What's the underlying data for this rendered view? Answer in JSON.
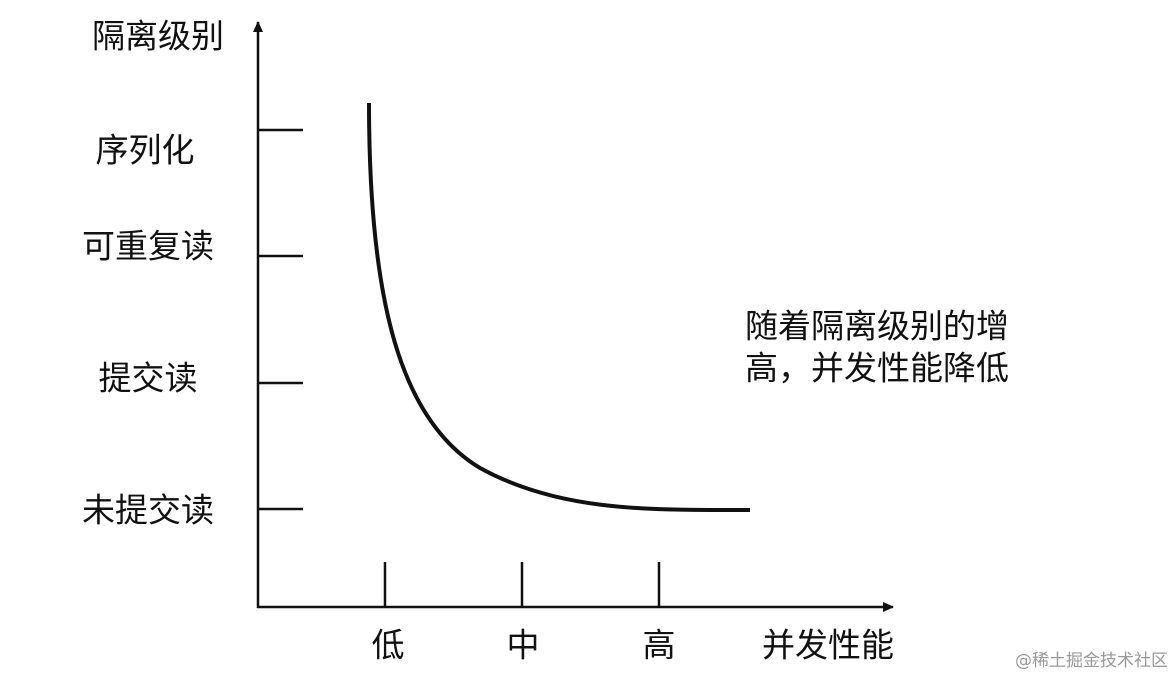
{
  "y_axis": {
    "title": "隔离级别",
    "labels": [
      "序列化",
      "可重复读",
      "提交读",
      "未提交读"
    ]
  },
  "x_axis": {
    "title": "并发性能",
    "labels": [
      "低",
      "中",
      "高"
    ]
  },
  "annotation": {
    "lines": [
      "随着隔离级别的增",
      "高，并发性能降低"
    ]
  },
  "watermark": "@稀土掘金技术社区"
}
